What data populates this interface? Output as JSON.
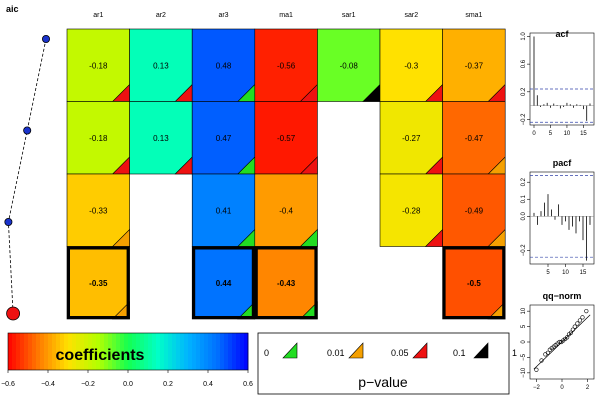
{
  "chart_data": [
    {
      "type": "line",
      "title": "aic",
      "points": [
        {
          "row": 1,
          "value": 0.0
        },
        {
          "row": 2,
          "value": -0.8
        },
        {
          "row": 3,
          "value": -1.6
        },
        {
          "row": 4,
          "value": -1.4
        }
      ],
      "highlighted_row": 4
    },
    {
      "type": "heatmap",
      "columns": [
        "ar1",
        "ar2",
        "ar3",
        "ma1",
        "sar1",
        "sar2",
        "sma1"
      ],
      "rows": [
        [
          {
            "v": "-0.18",
            "p": 0.08
          },
          {
            "v": "0.13",
            "p": 0.08
          },
          {
            "v": "0.48",
            "p": 0.005
          },
          {
            "v": "-0.56",
            "p": 0.08
          },
          {
            "v": "-0.08",
            "p": 0.5
          },
          {
            "v": "-0.3",
            "p": 0.08
          },
          {
            "v": "-0.37",
            "p": 0.08
          }
        ],
        [
          {
            "v": "-0.18",
            "p": 0.08
          },
          {
            "v": "0.13",
            "p": 0.08
          },
          {
            "v": "0.47",
            "p": 0.005
          },
          {
            "v": "-0.57",
            "p": 0.08
          },
          null,
          {
            "v": "-0.27",
            "p": 0.08
          },
          {
            "v": "-0.47",
            "p": 0.03
          }
        ],
        [
          {
            "v": "-0.33",
            "p": 0.03
          },
          null,
          {
            "v": "0.41",
            "p": 0.005
          },
          {
            "v": "-0.4",
            "p": 0.005
          },
          null,
          {
            "v": "-0.28",
            "p": 0.08
          },
          {
            "v": "-0.49",
            "p": 0.03
          }
        ],
        [
          {
            "v": "-0.35",
            "p": 0.03
          },
          null,
          {
            "v": "0.44",
            "p": 0.005
          },
          {
            "v": "-0.43",
            "p": 0.005
          },
          null,
          null,
          {
            "v": "-0.5",
            "p": 0.03
          }
        ]
      ],
      "best_row": 4
    },
    {
      "type": "bar",
      "title": "acf",
      "x": [
        0,
        1,
        2,
        3,
        4,
        5,
        6,
        7,
        8,
        9,
        10,
        11,
        12,
        13,
        14,
        15,
        16,
        17
      ],
      "values": [
        1.0,
        0.15,
        -0.02,
        0.02,
        0.04,
        -0.03,
        0.03,
        0.01,
        -0.04,
        -0.02,
        0.04,
        0.02,
        -0.03,
        0.02,
        0.01,
        -0.05,
        -0.22,
        0.03
      ],
      "x_ticks": [
        "0",
        "5",
        "10",
        "15"
      ],
      "y_ticks": [
        "−0.2",
        "0.2",
        "0.6",
        "1.0"
      ],
      "ylim": [
        -0.28,
        1.05
      ],
      "conf_band": 0.24
    },
    {
      "type": "bar",
      "title": "pacf",
      "x": [
        1,
        2,
        3,
        4,
        5,
        6,
        7,
        8,
        9,
        10,
        11,
        12,
        13,
        14,
        15,
        16,
        17
      ],
      "values": [
        0.02,
        -0.05,
        0.03,
        0.08,
        0.13,
        0.04,
        -0.02,
        0.07,
        -0.05,
        -0.03,
        -0.08,
        -0.06,
        -0.1,
        -0.03,
        -0.14,
        -0.26,
        -0.05
      ],
      "x_ticks": [
        "5",
        "10",
        "15"
      ],
      "y_ticks": [
        "−0.2",
        "0.0",
        "0.1",
        "0.2"
      ],
      "ylim": [
        -0.28,
        0.26
      ],
      "conf_band": 0.24
    },
    {
      "type": "scatter",
      "title": "qq−norm",
      "x": [
        -2.0,
        -1.6,
        -1.3,
        -1.1,
        -0.95,
        -0.8,
        -0.65,
        -0.5,
        -0.35,
        -0.2,
        -0.05,
        0.1,
        0.25,
        0.4,
        0.55,
        0.7,
        0.85,
        1.0,
        1.2,
        1.4,
        1.6,
        1.9
      ],
      "y": [
        -9,
        -6,
        -4,
        -3.5,
        -2.5,
        -2,
        -1.5,
        -1,
        -0.5,
        0,
        0,
        0.5,
        1,
        1.5,
        2.5,
        3,
        4,
        5,
        6,
        7,
        8,
        10
      ],
      "x_ticks": [
        "−2",
        "0",
        "2"
      ],
      "y_ticks": [
        "−10",
        "−5",
        "0",
        "5",
        "10"
      ],
      "xlim": [
        -2.5,
        2.5
      ],
      "ylim": [
        -12,
        12
      ],
      "reference_line": {
        "slope": 4.0,
        "intercept": 0
      }
    }
  ],
  "colorbar": {
    "label": "coefficients",
    "ticks": [
      "−0.6",
      "−0.4",
      "−0.2",
      "0.0",
      "0.2",
      "0.4",
      "0.6"
    ]
  },
  "pvalue_legend": {
    "title": "p−value",
    "labels": [
      "0",
      "0.01",
      "0.05",
      "0.1",
      "1"
    ],
    "colors": [
      "#22dd22",
      "#f5a000",
      "#ee1111",
      "#000000"
    ]
  }
}
